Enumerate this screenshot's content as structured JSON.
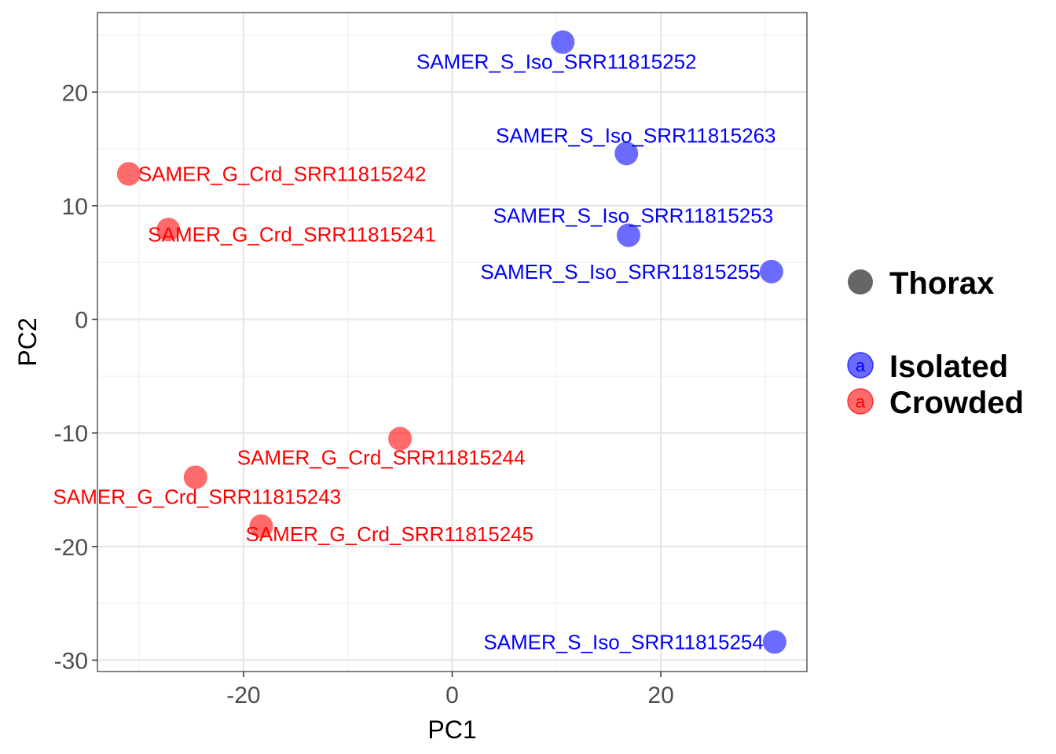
{
  "chart_data": {
    "type": "scatter",
    "xlabel": "PC1",
    "ylabel": "PC2",
    "xlim": [
      -34,
      34
    ],
    "ylim": [
      -31,
      27
    ],
    "x_ticks": [
      -20,
      0,
      20
    ],
    "y_ticks": [
      -30,
      -20,
      -10,
      0,
      10,
      20
    ],
    "x_tick_labels": [
      "-20",
      "0",
      "20"
    ],
    "y_tick_labels": [
      "-30",
      "-20",
      "-10",
      "0",
      "10",
      "20"
    ],
    "grid": true,
    "legend_position": "right",
    "series": [
      {
        "name": "Isolated",
        "color": "#0000ff",
        "points": [
          {
            "x": 10.6,
            "y": 24.4,
            "label": "SAMER_S_Iso_SRR11815252"
          },
          {
            "x": 16.7,
            "y": 14.6,
            "label": "SAMER_S_Iso_SRR11815263"
          },
          {
            "x": 16.9,
            "y": 7.4,
            "label": "SAMER_S_Iso_SRR11815253"
          },
          {
            "x": 30.6,
            "y": 4.2,
            "label": "SAMER_S_Iso_SRR11815255"
          },
          {
            "x": 30.9,
            "y": -28.4,
            "label": "SAMER_S_Iso_SRR11815254"
          }
        ]
      },
      {
        "name": "Crowded",
        "color": "#ff0000",
        "points": [
          {
            "x": -31.0,
            "y": 12.8,
            "label": "SAMER_G_Crd_SRR11815242"
          },
          {
            "x": -27.2,
            "y": 7.9,
            "label": "SAMER_G_Crd_SRR11815241"
          },
          {
            "x": -5.0,
            "y": -10.5,
            "label": "SAMER_G_Crd_SRR11815244"
          },
          {
            "x": -24.6,
            "y": -13.9,
            "label": "SAMER_G_Crd_SRR11815243"
          },
          {
            "x": -18.3,
            "y": -18.2,
            "label": "SAMER_G_Crd_SRR11815245"
          }
        ]
      }
    ],
    "legend": {
      "shape_title": "Thorax",
      "shape_color": "#666666",
      "key_letter": "a",
      "entries": [
        {
          "name": "Isolated",
          "color": "#0000ff"
        },
        {
          "name": "Crowded",
          "color": "#ff0000"
        }
      ]
    }
  }
}
